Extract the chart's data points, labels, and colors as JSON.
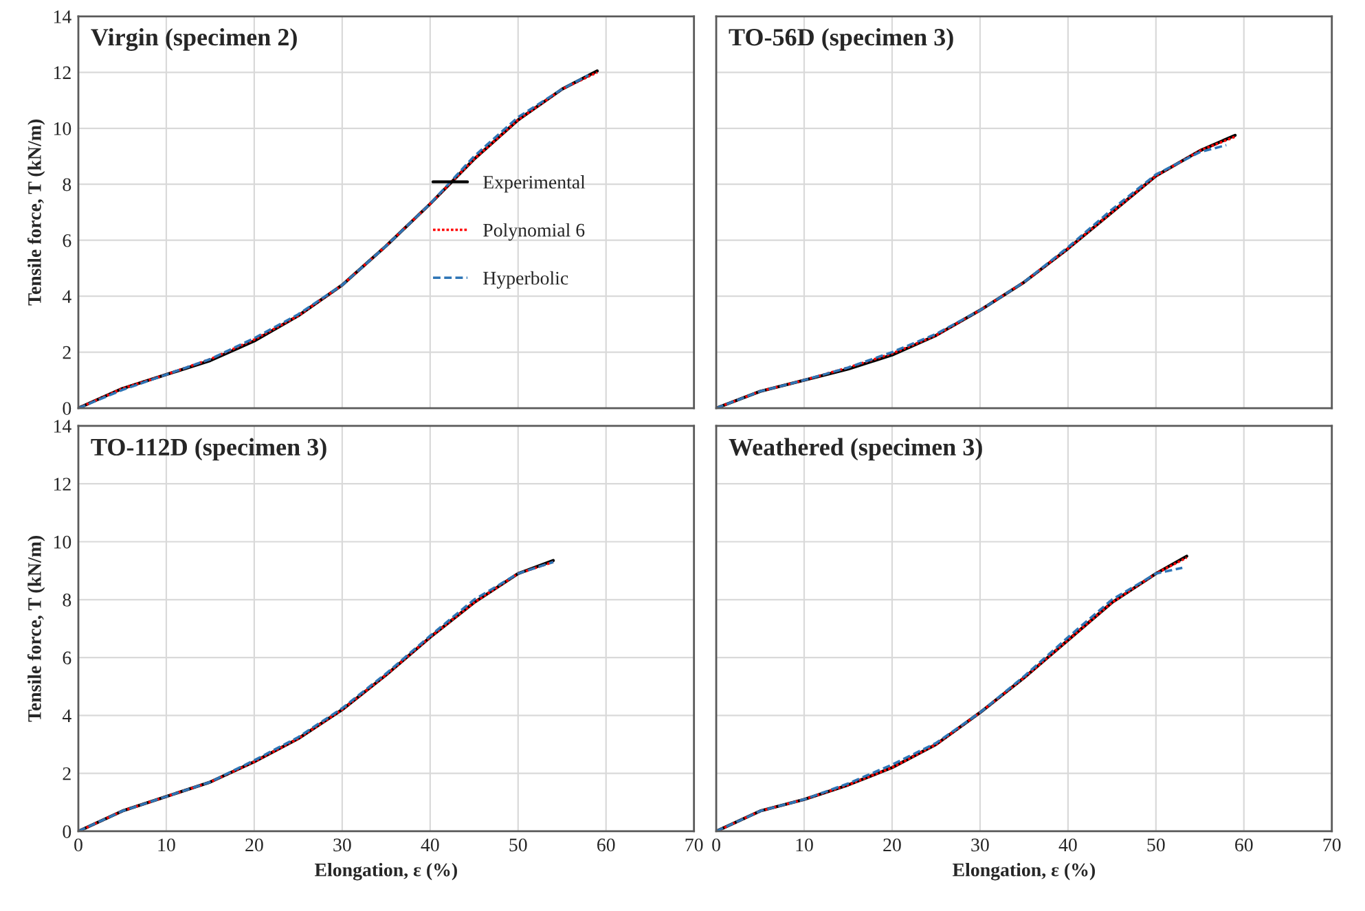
{
  "chart_data": [
    {
      "type": "line",
      "title": "Virgin (specimen 2)",
      "ylabel": "Tensile force, T (kN/m)",
      "xlim": [
        0,
        70
      ],
      "ylim": [
        0,
        14
      ],
      "xticks": [
        0,
        10,
        20,
        30,
        40,
        50,
        60,
        70
      ],
      "yticks": [
        0,
        2,
        4,
        6,
        8,
        10,
        12,
        14
      ],
      "grid": true,
      "legend": "center",
      "tick_labels": "y",
      "x": [
        0,
        5,
        10,
        15,
        20,
        25,
        30,
        35,
        40,
        45,
        50,
        55,
        59
      ],
      "series": [
        {
          "name": "Experimental",
          "color": "#000000",
          "line_style": "solid",
          "values": [
            0,
            0.7,
            1.2,
            1.7,
            2.4,
            3.3,
            4.4,
            5.8,
            7.3,
            8.9,
            10.3,
            11.4,
            12.05
          ]
        },
        {
          "name": "Polynomial 6",
          "color": "#ff0000",
          "line_style": "dotted",
          "values": [
            0,
            0.7,
            1.2,
            1.75,
            2.45,
            3.3,
            4.4,
            5.8,
            7.3,
            8.9,
            10.3,
            11.4,
            12.0
          ]
        },
        {
          "name": "Hyperbolic",
          "color": "#2e75b6",
          "line_style": "dashed",
          "x": [
            0,
            5,
            10,
            15,
            20,
            25,
            30,
            35,
            40,
            45,
            50,
            55,
            58
          ],
          "values": [
            0,
            0.65,
            1.2,
            1.75,
            2.5,
            3.35,
            4.4,
            5.8,
            7.3,
            9.0,
            10.4,
            11.4,
            11.9
          ]
        }
      ]
    },
    {
      "type": "line",
      "title": "TO-56D (specimen 3)",
      "xlim": [
        0,
        70
      ],
      "ylim": [
        0,
        14
      ],
      "xticks": [
        0,
        10,
        20,
        30,
        40,
        50,
        60,
        70
      ],
      "yticks": [
        0,
        2,
        4,
        6,
        8,
        10,
        12,
        14
      ],
      "grid": true,
      "tick_labels": false,
      "x": [
        0,
        5,
        10,
        15,
        20,
        25,
        30,
        35,
        40,
        45,
        50,
        55,
        59
      ],
      "series": [
        {
          "color": "#000000",
          "line_style": "solid",
          "values": [
            0,
            0.6,
            1.0,
            1.4,
            1.9,
            2.6,
            3.5,
            4.5,
            5.7,
            7.0,
            8.3,
            9.2,
            9.75
          ]
        },
        {
          "color": "#ff0000",
          "line_style": "dotted",
          "values": [
            0,
            0.6,
            1.0,
            1.45,
            1.95,
            2.6,
            3.5,
            4.5,
            5.7,
            7.0,
            8.3,
            9.2,
            9.7
          ]
        },
        {
          "color": "#2e75b6",
          "line_style": "dashed",
          "x": [
            0,
            5,
            10,
            15,
            20,
            25,
            30,
            35,
            40,
            45,
            50,
            55,
            58
          ],
          "values": [
            0,
            0.6,
            1.0,
            1.45,
            2.0,
            2.65,
            3.5,
            4.5,
            5.75,
            7.1,
            8.35,
            9.15,
            9.4
          ]
        }
      ]
    },
    {
      "type": "line",
      "title": "TO-112D (specimen 3)",
      "xlabel": "Elongation, ε (%)",
      "ylabel": "Tensile force, T (kN/m)",
      "xlim": [
        0,
        70
      ],
      "ylim": [
        0,
        14
      ],
      "xticks": [
        0,
        10,
        20,
        30,
        40,
        50,
        60,
        70
      ],
      "yticks": [
        0,
        2,
        4,
        6,
        8,
        10,
        12,
        14
      ],
      "grid": true,
      "x": [
        0,
        5,
        10,
        15,
        20,
        25,
        30,
        35,
        40,
        45,
        50,
        54
      ],
      "series": [
        {
          "color": "#000000",
          "line_style": "solid",
          "values": [
            0,
            0.7,
            1.2,
            1.7,
            2.4,
            3.2,
            4.2,
            5.4,
            6.7,
            7.9,
            8.9,
            9.35
          ]
        },
        {
          "color": "#ff0000",
          "line_style": "dotted",
          "values": [
            0,
            0.7,
            1.2,
            1.7,
            2.4,
            3.2,
            4.2,
            5.4,
            6.7,
            7.9,
            8.9,
            9.3
          ]
        },
        {
          "color": "#2e75b6",
          "line_style": "dashed",
          "values": [
            0,
            0.7,
            1.2,
            1.7,
            2.45,
            3.25,
            4.25,
            5.45,
            6.75,
            8.0,
            8.9,
            9.3
          ]
        }
      ]
    },
    {
      "type": "line",
      "title": "Weathered (specimen 3)",
      "xlabel": "Elongation, ε (%)",
      "xlim": [
        0,
        70
      ],
      "ylim": [
        0,
        14
      ],
      "xticks": [
        0,
        10,
        20,
        30,
        40,
        50,
        60,
        70
      ],
      "yticks": [
        0,
        2,
        4,
        6,
        8,
        10,
        12,
        14
      ],
      "grid": true,
      "tick_labels": "x",
      "x": [
        0,
        5,
        10,
        15,
        20,
        25,
        30,
        35,
        40,
        45,
        50,
        53.5
      ],
      "series": [
        {
          "color": "#000000",
          "line_style": "solid",
          "values": [
            0,
            0.7,
            1.1,
            1.6,
            2.2,
            3.0,
            4.1,
            5.3,
            6.6,
            7.9,
            8.9,
            9.5
          ]
        },
        {
          "color": "#ff0000",
          "line_style": "dotted",
          "values": [
            0,
            0.7,
            1.1,
            1.6,
            2.2,
            3.0,
            4.1,
            5.3,
            6.6,
            7.9,
            8.9,
            9.45
          ]
        },
        {
          "color": "#2e75b6",
          "line_style": "dashed",
          "x": [
            0,
            5,
            10,
            15,
            20,
            25,
            30,
            35,
            40,
            45,
            50,
            53
          ],
          "values": [
            0,
            0.7,
            1.1,
            1.65,
            2.3,
            3.05,
            4.1,
            5.35,
            6.7,
            8.0,
            8.9,
            9.1
          ]
        }
      ]
    }
  ]
}
